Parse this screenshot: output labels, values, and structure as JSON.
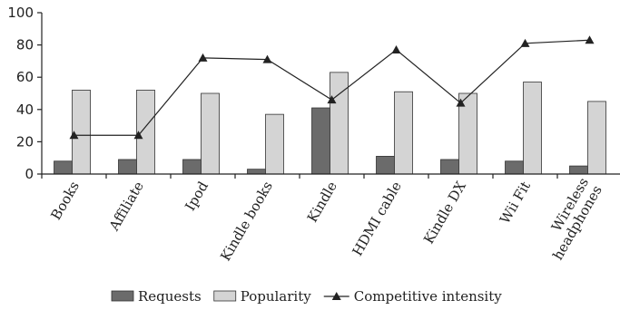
{
  "chart_data": {
    "type": "bar",
    "categories": [
      "Books",
      "Affiliate",
      "Ipod",
      "Kindle books",
      "Kindle",
      "HDMI cable",
      "Kindle DX",
      "Wii Fit",
      "Wireless headphones"
    ],
    "category_lines": [
      [
        "Books"
      ],
      [
        "Affiliate"
      ],
      [
        "Ipod"
      ],
      [
        "Kindle books"
      ],
      [
        "Kindle"
      ],
      [
        "HDMI cable"
      ],
      [
        "Kindle DX"
      ],
      [
        "Wii Fit"
      ],
      [
        "Wireless",
        "headphones"
      ]
    ],
    "series": [
      {
        "name": "Requests",
        "kind": "bar",
        "color": "#6b6b6b",
        "values": [
          8,
          9,
          9,
          3,
          41,
          11,
          9,
          8,
          5
        ]
      },
      {
        "name": "Popularity",
        "kind": "bar",
        "color": "#d4d4d4",
        "values": [
          52,
          52,
          50,
          37,
          63,
          51,
          50,
          57,
          45
        ]
      },
      {
        "name": "Competitive intensity",
        "kind": "line",
        "marker": "triangle",
        "color": "#222222",
        "values": [
          24,
          24,
          72,
          71,
          46,
          77,
          44,
          81,
          83
        ]
      }
    ],
    "title": "",
    "xlabel": "",
    "ylabel": "",
    "ylim": [
      0,
      100
    ],
    "yticks": [
      "0",
      "20",
      "40",
      "60",
      "80",
      "100"
    ],
    "grid": false,
    "legend": "bottom"
  }
}
